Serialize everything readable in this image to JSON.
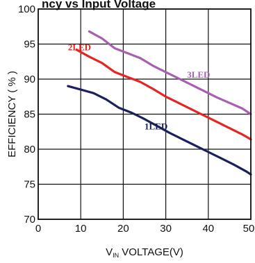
{
  "chart_data": {
    "type": "line",
    "title": "",
    "title_fragment": "ncy vs Input Voltage",
    "xlabel": {
      "prefix": "V",
      "subscript": "IN",
      "suffix": " VOLTAGE(V)"
    },
    "ylabel": "EFFICIENCY ( % )",
    "xlim": [
      0,
      50
    ],
    "ylim": [
      70,
      100
    ],
    "x_ticks": [
      "0",
      "10",
      "20",
      "30",
      "40",
      "50"
    ],
    "y_ticks": [
      "70",
      "75",
      "80",
      "85",
      "90",
      "95",
      "100"
    ],
    "grid": true,
    "series": [
      {
        "name": "1LED",
        "color": "#1c1f5e",
        "label_pos": {
          "x": 25,
          "y": 82.8
        },
        "x": [
          7,
          10,
          13,
          16,
          19,
          22,
          25,
          28,
          31,
          34,
          37,
          40,
          43,
          46,
          49,
          50
        ],
        "y": [
          89.0,
          88.5,
          88.0,
          87.1,
          85.9,
          85.2,
          84.3,
          83.3,
          82.3,
          81.4,
          80.5,
          79.6,
          78.7,
          77.8,
          76.8,
          76.4
        ]
      },
      {
        "name": "2LED",
        "color": "#e52521",
        "label_pos": {
          "x": 7,
          "y": 94.1
        },
        "x": [
          9,
          12,
          15,
          18,
          21,
          24,
          27,
          30,
          33,
          36,
          39,
          42,
          45,
          48,
          50
        ],
        "y": [
          94.2,
          93.2,
          92.3,
          91.0,
          90.3,
          89.6,
          88.6,
          87.5,
          86.6,
          85.7,
          84.8,
          83.9,
          83.0,
          82.1,
          81.4
        ]
      },
      {
        "name": "3LED",
        "color": "#a95fb0",
        "label_pos": {
          "x": 35,
          "y": 90.2
        },
        "x": [
          12,
          15,
          18,
          21,
          24,
          27,
          30,
          33,
          36,
          39,
          42,
          45,
          48,
          50
        ],
        "y": [
          96.8,
          95.8,
          94.4,
          93.7,
          93.0,
          91.9,
          91.0,
          90.1,
          89.2,
          88.3,
          87.4,
          86.6,
          85.8,
          85.0
        ]
      }
    ]
  }
}
